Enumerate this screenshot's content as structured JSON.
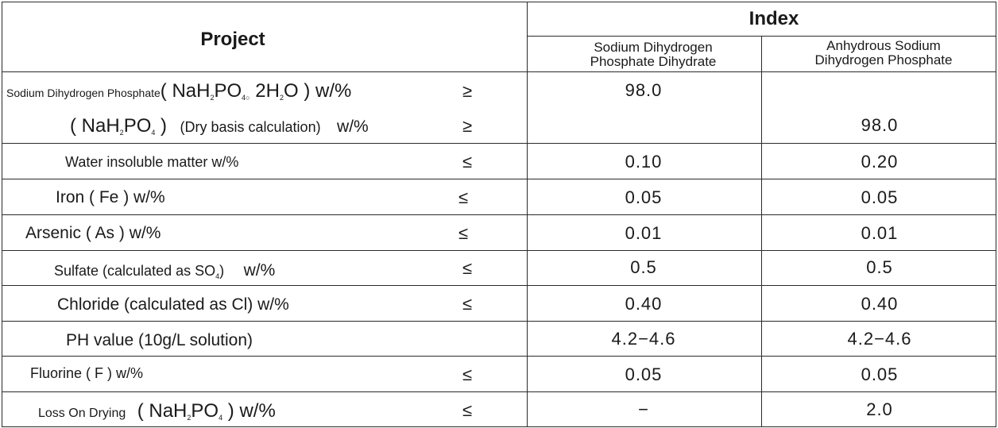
{
  "header": {
    "project": "Project",
    "index": "Index",
    "col1": [
      "Sodium Dihydrogen",
      "Phosphate Dihydrate"
    ],
    "col2": [
      "Anhydrous Sodium",
      "Dihydrogen Phosphate"
    ]
  },
  "rows": [
    {
      "label_a": "Sodium Dihydrogen Phosphate",
      "formula": [
        "( NaH",
        "2",
        "PO",
        "4○",
        " 2H",
        "2",
        "O ) w/%"
      ],
      "op": "≥",
      "v1": "98.0",
      "v2": ""
    },
    {
      "formula": [
        "( NaH",
        "2",
        "PO",
        "4",
        " )"
      ],
      "label_b": "(Dry basis calculation)",
      "unit": "w/%",
      "op": "≥",
      "v1": "",
      "v2": "98.0"
    },
    {
      "label": "Water insoluble matter w/%",
      "op": "≤",
      "v1": "0.10",
      "v2": "0.20"
    },
    {
      "label": "Iron ( Fe ) w/%",
      "op": "≤",
      "v1": "0.05",
      "v2": "0.05"
    },
    {
      "label": "Arsenic ( As ) w/%",
      "op": "≤",
      "v1": "0.01",
      "v2": "0.01"
    },
    {
      "label_pre": "Sulfate (calculated as SO",
      "label_sub": "4",
      "label_post": ")",
      "unit": "w/%",
      "op": "≤",
      "v1": "0.5",
      "v2": "0.5"
    },
    {
      "label": "Chloride (calculated as Cl) w/%",
      "op": "≤",
      "v1": "0.40",
      "v2": "0.40"
    },
    {
      "label": "PH value (10g/L solution)",
      "op": "",
      "v1": "4.2−4.6",
      "v2": "4.2−4.6"
    },
    {
      "label": "Fluorine ( F ) w/%",
      "op": "≤",
      "v1": "0.05",
      "v2": "0.05"
    },
    {
      "label_a": "Loss On Drying",
      "formula": [
        "( NaH",
        "2",
        "PO",
        "4",
        " ) w/%"
      ],
      "op": "≤",
      "v1": "−",
      "v2": "2.0"
    }
  ]
}
